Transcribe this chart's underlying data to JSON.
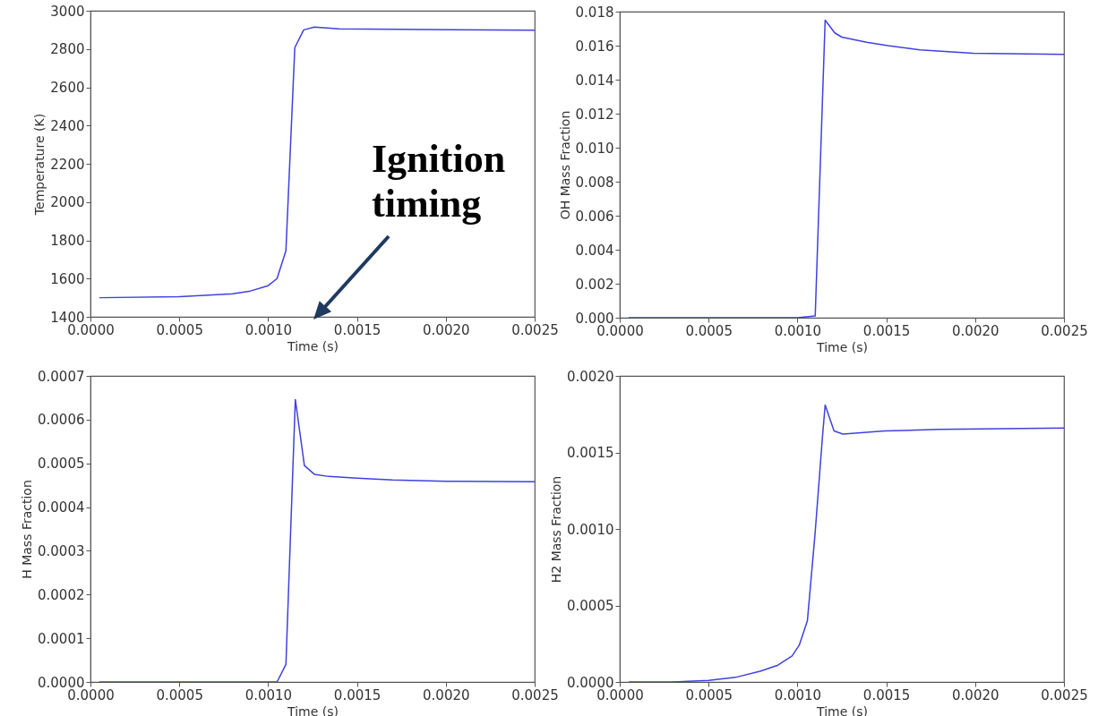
{
  "chart_data": [
    {
      "type": "line",
      "xlabel": "Time (s)",
      "ylabel": "Temperature (K)",
      "color": "#4040e0",
      "x": [
        5e-05,
        0.0005,
        0.0008,
        0.0009,
        0.001,
        0.00105,
        0.0011,
        0.00115,
        0.0012,
        0.00126,
        0.0014,
        0.0025
      ],
      "values": [
        1500,
        1505,
        1520,
        1535,
        1563,
        1600,
        1745,
        2807,
        2900,
        2915,
        2905,
        2898
      ],
      "xlim": [
        0,
        0.0025
      ],
      "ylim": [
        1400,
        3000
      ],
      "xticks": [
        {
          "value": 0,
          "label": "0.0000"
        },
        {
          "value": 0.0005,
          "label": "0.0005"
        },
        {
          "value": 0.001,
          "label": "0.0010"
        },
        {
          "value": 0.0015,
          "label": "0.0015"
        },
        {
          "value": 0.002,
          "label": "0.0020"
        },
        {
          "value": 0.0025,
          "label": "0.0025"
        }
      ],
      "yticks": [
        1400,
        1600,
        1800,
        2000,
        2200,
        2400,
        2600,
        2800,
        3000
      ],
      "annotations": [
        "Ignition timing"
      ]
    },
    {
      "type": "line",
      "xlabel": "Time (s)",
      "ylabel": "OH Mass Fraction",
      "color": "#4040e0",
      "x": [
        5e-05,
        0.001,
        0.0011,
        0.001156,
        0.00121,
        0.00125,
        0.00139,
        0.00151,
        0.00169,
        0.00199,
        0.0025
      ],
      "values": [
        0,
        0,
        0.0001,
        0.0175,
        0.01675,
        0.0165,
        0.0162,
        0.016,
        0.01575,
        0.01555,
        0.01549
      ],
      "xlim": [
        0,
        0.0025
      ],
      "ylim": [
        0,
        0.018
      ],
      "xticks": [
        {
          "value": 0,
          "label": "0.0000"
        },
        {
          "value": 0.0005,
          "label": "0.0005"
        },
        {
          "value": 0.001,
          "label": "0.0010"
        },
        {
          "value": 0.0015,
          "label": "0.0015"
        },
        {
          "value": 0.002,
          "label": "0.0020"
        },
        {
          "value": 0.0025,
          "label": "0.0025"
        }
      ],
      "yticks": [
        {
          "value": 0,
          "label": "0.000"
        },
        {
          "value": 0.002,
          "label": "0.002"
        },
        {
          "value": 0.004,
          "label": "0.004"
        },
        {
          "value": 0.006,
          "label": "0.006"
        },
        {
          "value": 0.008,
          "label": "0.008"
        },
        {
          "value": 0.01,
          "label": "0.010"
        },
        {
          "value": 0.012,
          "label": "0.012"
        },
        {
          "value": 0.014,
          "label": "0.014"
        },
        {
          "value": 0.016,
          "label": "0.016"
        },
        {
          "value": 0.018,
          "label": "0.018"
        }
      ]
    },
    {
      "type": "line",
      "xlabel": "Time (s)",
      "ylabel": "H Mass Fraction",
      "color": "#4040e0",
      "x": [
        5e-05,
        0.00105,
        0.0011,
        0.001153,
        0.001204,
        0.00126,
        0.00134,
        0.0015,
        0.0017,
        0.002,
        0.0025
      ],
      "values": [
        0,
        0,
        4e-05,
        0.000646,
        0.000495,
        0.000475,
        0.00047,
        0.000466,
        0.000462,
        0.000459,
        0.000458
      ],
      "xlim": [
        0,
        0.0025
      ],
      "ylim": [
        0,
        0.0007
      ],
      "xticks": [
        {
          "value": 0,
          "label": "0.0000"
        },
        {
          "value": 0.0005,
          "label": "0.0005"
        },
        {
          "value": 0.001,
          "label": "0.0010"
        },
        {
          "value": 0.0015,
          "label": "0.0015"
        },
        {
          "value": 0.002,
          "label": "0.0020"
        },
        {
          "value": 0.0025,
          "label": "0.0025"
        }
      ],
      "yticks": [
        {
          "value": 0,
          "label": "0.0000"
        },
        {
          "value": 0.0001,
          "label": "0.0001"
        },
        {
          "value": 0.0002,
          "label": "0.0002"
        },
        {
          "value": 0.0003,
          "label": "0.0003"
        },
        {
          "value": 0.0004,
          "label": "0.0004"
        },
        {
          "value": 0.0005,
          "label": "0.0005"
        },
        {
          "value": 0.0006,
          "label": "0.0006"
        },
        {
          "value": 0.0007,
          "label": "0.0007"
        }
      ]
    },
    {
      "type": "line",
      "xlabel": "Time (s)",
      "ylabel": "H2 Mass Fraction",
      "color": "#4040e0",
      "x": [
        5e-05,
        0.00029,
        0.0005,
        0.00065,
        0.00079,
        0.00089,
        0.00097,
        0.00101,
        0.001056,
        0.0011,
        0.00114,
        0.001156,
        0.001206,
        0.001256,
        0.00149,
        0.00179,
        0.0025
      ],
      "values": [
        0,
        0,
        1e-05,
        3e-05,
        7e-05,
        0.00011,
        0.00017,
        0.00024,
        0.0004,
        0.00098,
        0.00159,
        0.00181,
        0.00164,
        0.00162,
        0.00164,
        0.00165,
        0.00166
      ],
      "xlim": [
        0,
        0.0025
      ],
      "ylim": [
        0,
        0.002
      ],
      "xticks": [
        {
          "value": 0,
          "label": "0.0000"
        },
        {
          "value": 0.0005,
          "label": "0.0005"
        },
        {
          "value": 0.001,
          "label": "0.0010"
        },
        {
          "value": 0.0015,
          "label": "0.0015"
        },
        {
          "value": 0.002,
          "label": "0.0020"
        },
        {
          "value": 0.0025,
          "label": "0.0025"
        }
      ],
      "yticks": [
        {
          "value": 0,
          "label": "0.0000"
        },
        {
          "value": 0.0005,
          "label": "0.0005"
        },
        {
          "value": 0.001,
          "label": "0.0010"
        },
        {
          "value": 0.0015,
          "label": "0.0015"
        },
        {
          "value": 0.002,
          "label": "0.0020"
        }
      ]
    }
  ]
}
